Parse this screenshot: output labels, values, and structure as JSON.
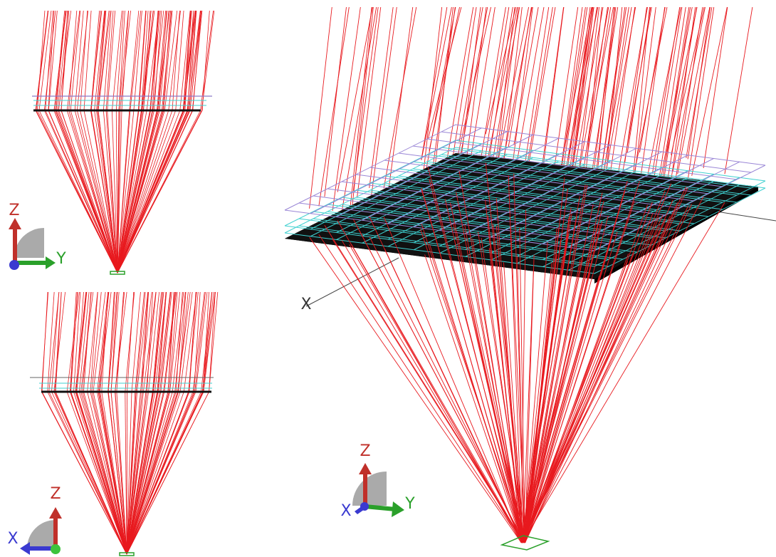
{
  "views": [
    {
      "axis_labels": [
        "Z",
        "Y"
      ]
    },
    {
      "axis_labels": [
        "Z",
        "X"
      ]
    },
    {
      "axis_labels": [
        "Z",
        "Y",
        "X"
      ],
      "axis_line_label": "X"
    }
  ]
}
